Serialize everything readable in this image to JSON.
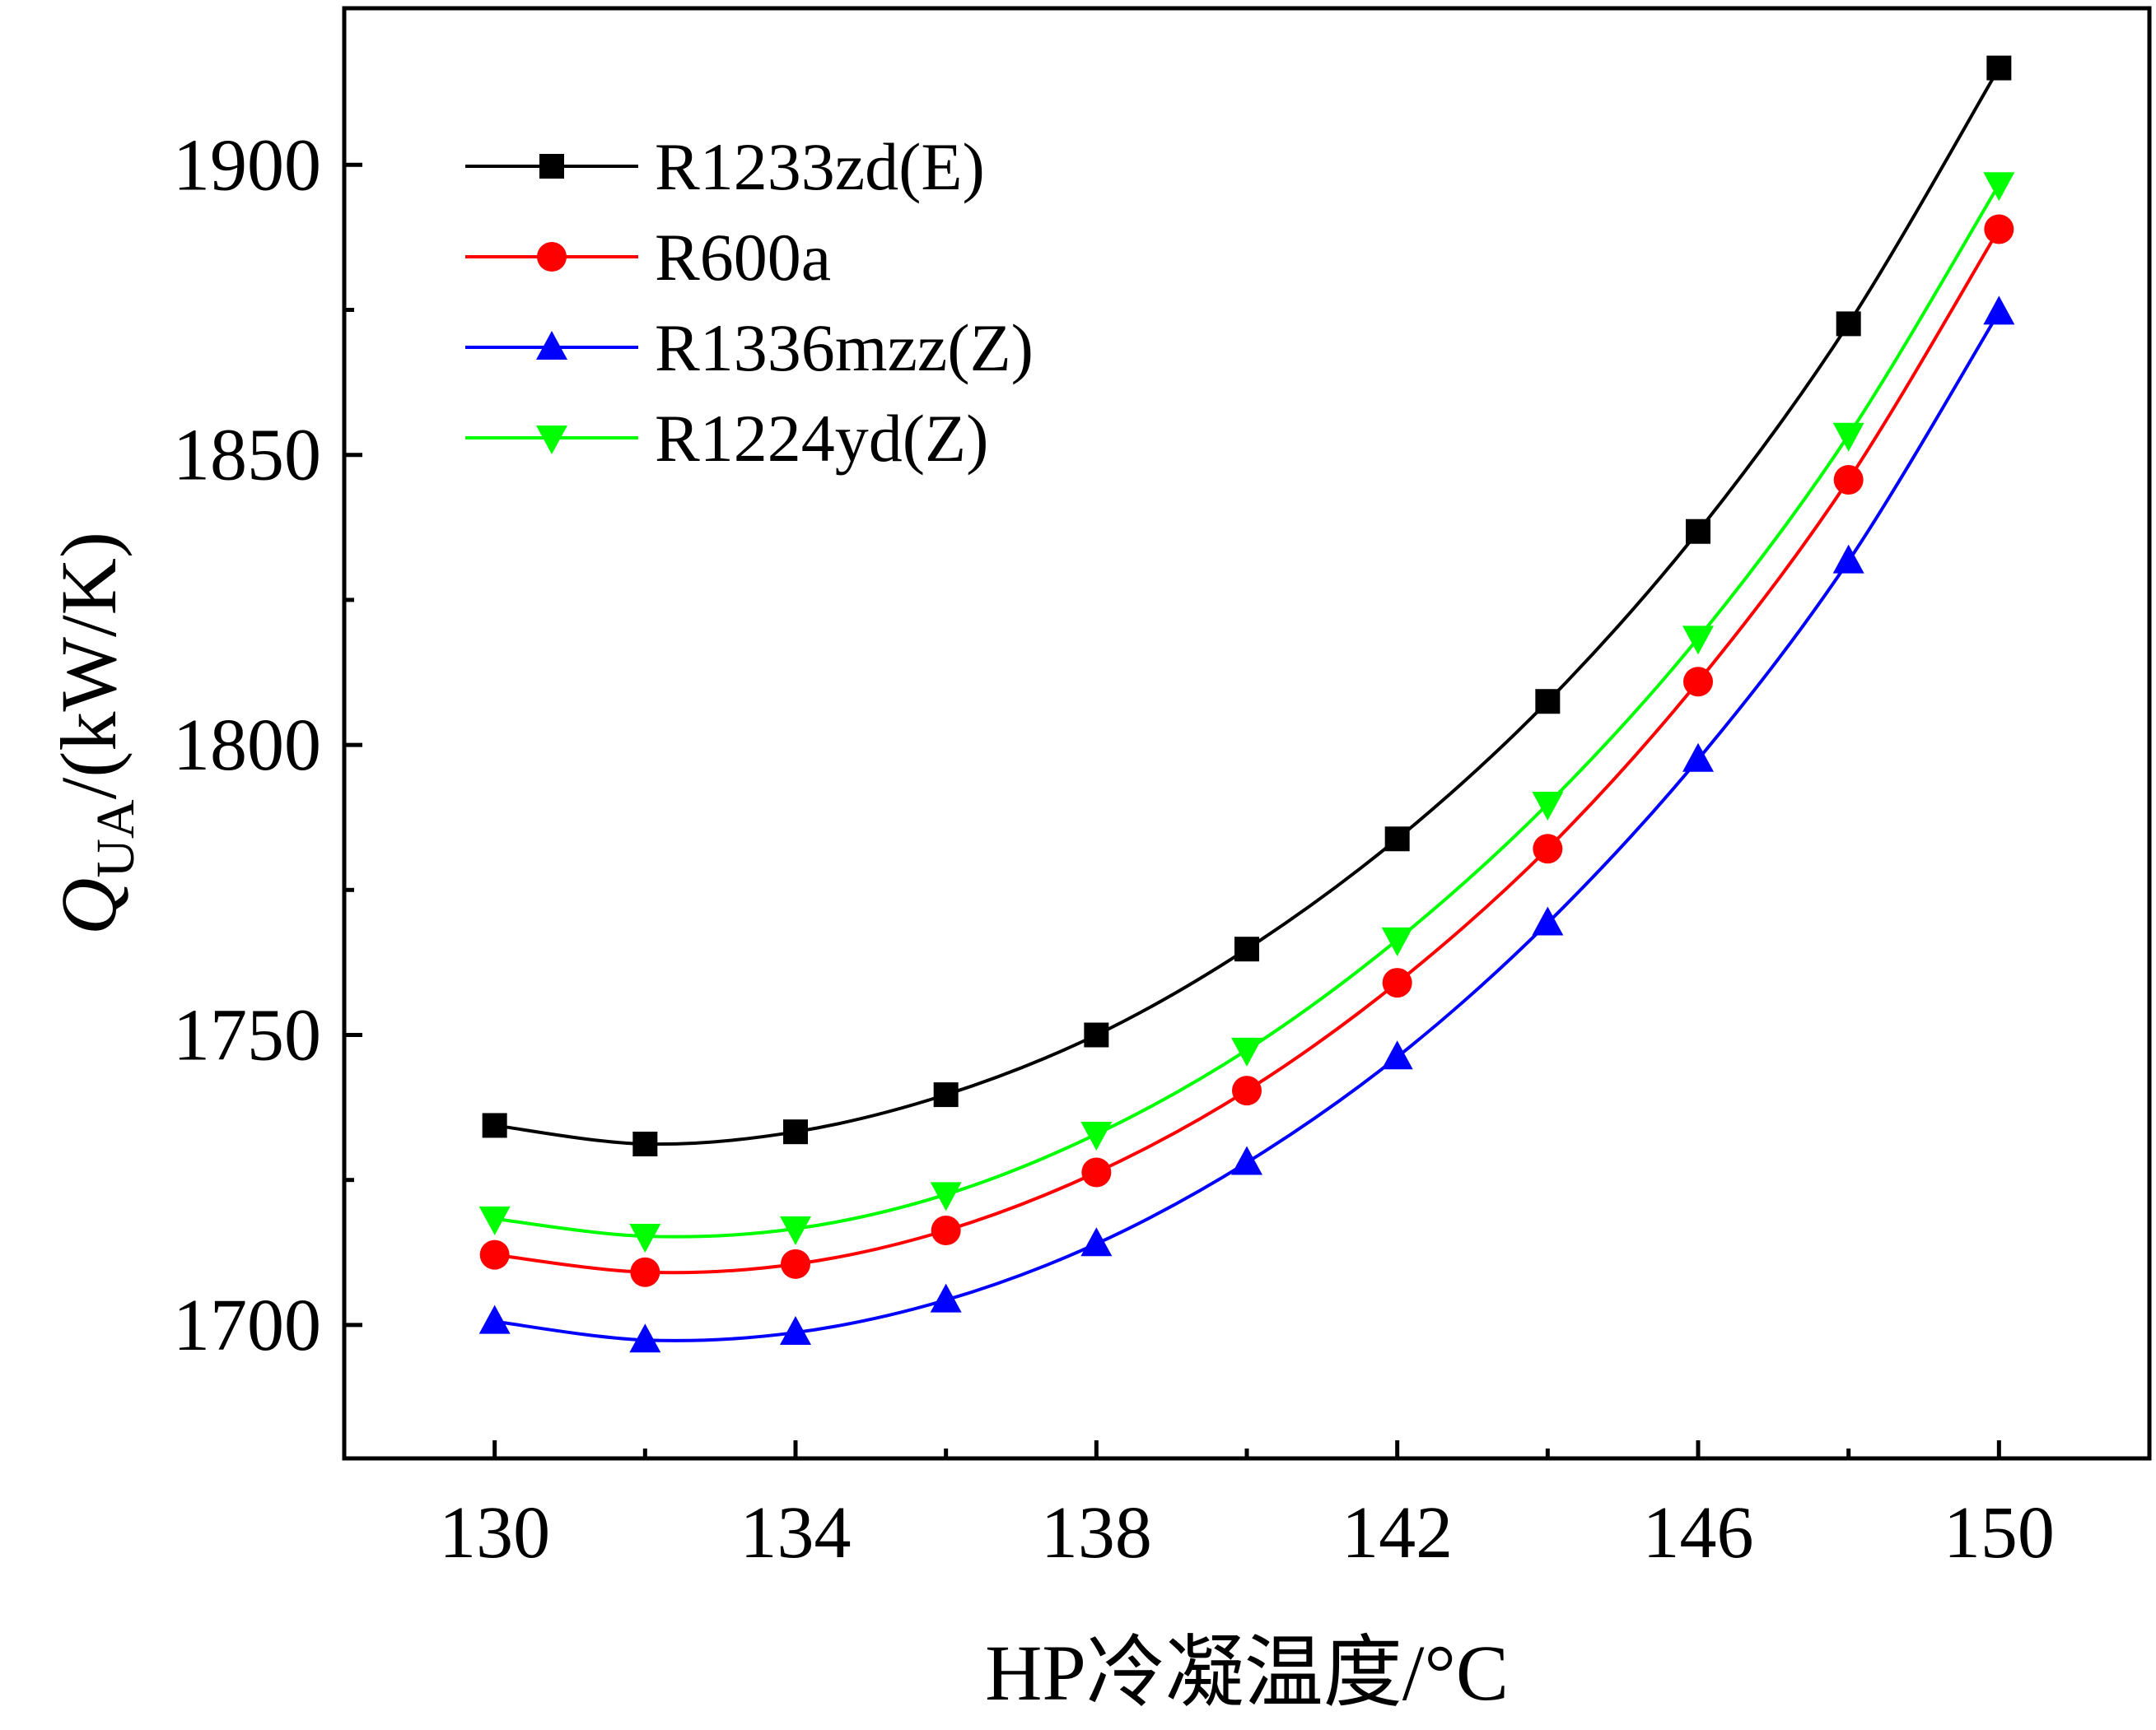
{
  "chart_data": {
    "type": "line",
    "x": [
      130,
      132,
      134,
      136,
      138,
      140,
      142,
      144,
      146,
      148,
      150
    ],
    "series": [
      {
        "name": "R1233zd(E)",
        "color": "#000000",
        "marker": "square",
        "values": [
          1734.4,
          1731.2,
          1733.3,
          1739.7,
          1750.0,
          1764.8,
          1783.8,
          1807.5,
          1836.8,
          1872.6,
          1916.7
        ]
      },
      {
        "name": "R600a",
        "color": "#ff0000",
        "marker": "circle",
        "values": [
          1712.1,
          1709.1,
          1710.5,
          1716.3,
          1726.3,
          1740.4,
          1759.0,
          1782.1,
          1810.9,
          1845.7,
          1888.9
        ]
      },
      {
        "name": "R1336mzz(Z)",
        "color": "#0000ff",
        "marker": "triangle-up",
        "values": [
          1700.6,
          1697.4,
          1698.7,
          1704.3,
          1714.0,
          1728.0,
          1746.2,
          1769.3,
          1797.5,
          1831.7,
          1874.6
        ]
      },
      {
        "name": "R1224yd(Z)",
        "color": "#00ff00",
        "marker": "triangle-down",
        "values": [
          1718.3,
          1715.3,
          1716.6,
          1722.5,
          1732.9,
          1747.4,
          1766.4,
          1789.8,
          1818.4,
          1853.4,
          1896.6
        ]
      }
    ],
    "xlabel": "HP冷凝温度/°C",
    "ylabel_main": "Q",
    "ylabel_sub": "UA",
    "ylabel_unit": "/(kW/K)",
    "xlim": [
      128,
      152
    ],
    "ylim": [
      1677,
      1927
    ],
    "xticks": [
      130,
      134,
      138,
      142,
      146,
      150
    ],
    "xticks_minor": [
      132,
      136,
      140,
      144,
      148,
      152
    ],
    "yticks": [
      1700,
      1750,
      1800,
      1850,
      1900
    ],
    "yticks_minor": [
      1725,
      1775,
      1825,
      1875
    ],
    "legend_position": "top-left",
    "grid": false
  }
}
